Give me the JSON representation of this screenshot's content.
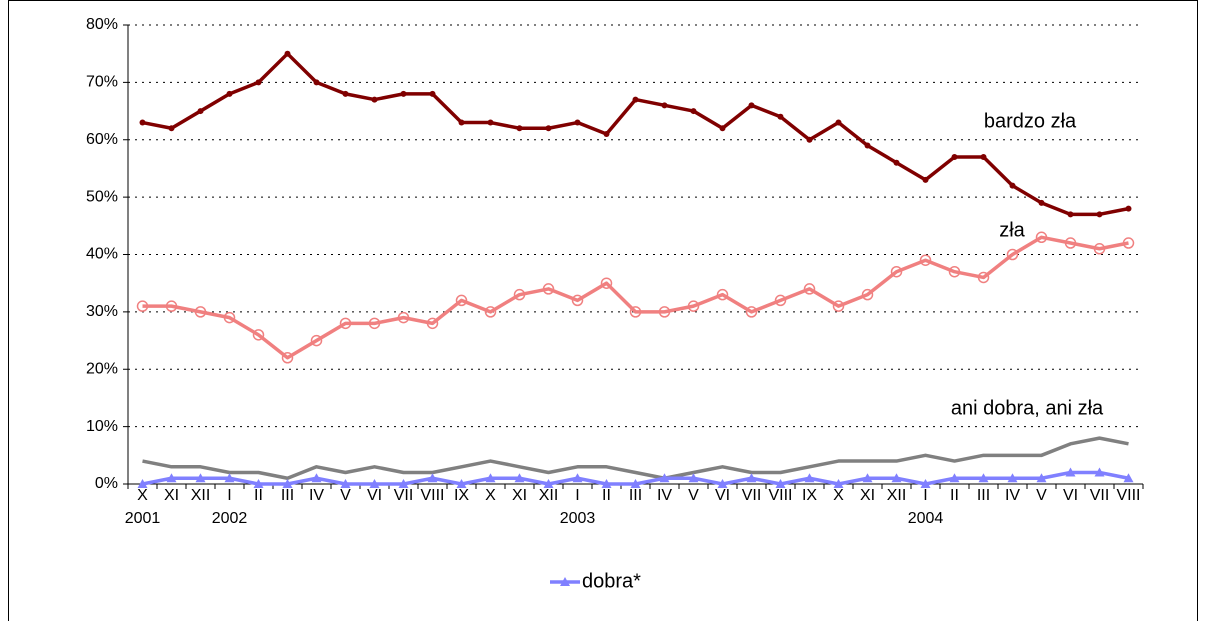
{
  "chart_data": {
    "type": "line",
    "categories": [
      "X",
      "XI",
      "XII",
      "I",
      "II",
      "III",
      "IV",
      "V",
      "VI",
      "VII",
      "VIII",
      "IX",
      "X",
      "XI",
      "XII",
      "I",
      "II",
      "III",
      "IV",
      "V",
      "VI",
      "VII",
      "VIII",
      "IX",
      "X",
      "XI",
      "XII",
      "I",
      "II",
      "III",
      "IV",
      "V",
      "VI",
      "VII",
      "VIII"
    ],
    "years": [
      "2001",
      null,
      null,
      "2002",
      null,
      null,
      null,
      null,
      null,
      null,
      null,
      null,
      null,
      null,
      null,
      "2003",
      null,
      null,
      null,
      null,
      null,
      null,
      null,
      null,
      null,
      null,
      null,
      "2004",
      null,
      null,
      null,
      null,
      null,
      null,
      null
    ],
    "series": [
      {
        "name": "bardzo zła",
        "color": "#800000",
        "marker": "dot",
        "label": "inline",
        "values": [
          63,
          62,
          65,
          68,
          70,
          75,
          70,
          68,
          67,
          68,
          68,
          63,
          63,
          62,
          62,
          63,
          61,
          67,
          66,
          65,
          62,
          66,
          64,
          60,
          63,
          59,
          56,
          53,
          57,
          57,
          52,
          49,
          47,
          47,
          48
        ]
      },
      {
        "name": "zła",
        "color": "#f08080",
        "marker": "ring",
        "label": "inline",
        "values": [
          31,
          31,
          30,
          29,
          26,
          22,
          25,
          28,
          28,
          29,
          28,
          32,
          30,
          33,
          34,
          32,
          35,
          30,
          30,
          31,
          33,
          30,
          32,
          34,
          31,
          33,
          37,
          39,
          37,
          36,
          40,
          43,
          42,
          41,
          42
        ]
      },
      {
        "name": "ani dobra, ani zła",
        "color": "#808080",
        "marker": "none",
        "label": "inline",
        "values": [
          4,
          3,
          3,
          2,
          2,
          1,
          3,
          2,
          3,
          2,
          2,
          3,
          4,
          3,
          2,
          3,
          3,
          2,
          1,
          2,
          3,
          2,
          2,
          3,
          4,
          4,
          4,
          5,
          4,
          5,
          5,
          5,
          7,
          8,
          7
        ]
      },
      {
        "name": "dobra*",
        "color": "#8080ff",
        "marker": "triangle",
        "label": "legend",
        "values": [
          0,
          1,
          1,
          1,
          0,
          0,
          1,
          0,
          0,
          0,
          1,
          0,
          1,
          1,
          0,
          1,
          0,
          0,
          1,
          1,
          0,
          1,
          0,
          1,
          0,
          1,
          1,
          0,
          1,
          1,
          1,
          1,
          2,
          2,
          1
        ]
      }
    ],
    "ylim": [
      0,
      80
    ],
    "yticks": [
      {
        "value": 0,
        "label": "0%"
      },
      {
        "value": 10,
        "label": "10%"
      },
      {
        "value": 20,
        "label": "20%"
      },
      {
        "value": 30,
        "label": "30%"
      },
      {
        "value": 40,
        "label": "40%"
      },
      {
        "value": 50,
        "label": "50%"
      },
      {
        "value": 60,
        "label": "60%"
      },
      {
        "value": 70,
        "label": "70%"
      },
      {
        "value": 80,
        "label": "80%"
      }
    ],
    "grid": true
  }
}
